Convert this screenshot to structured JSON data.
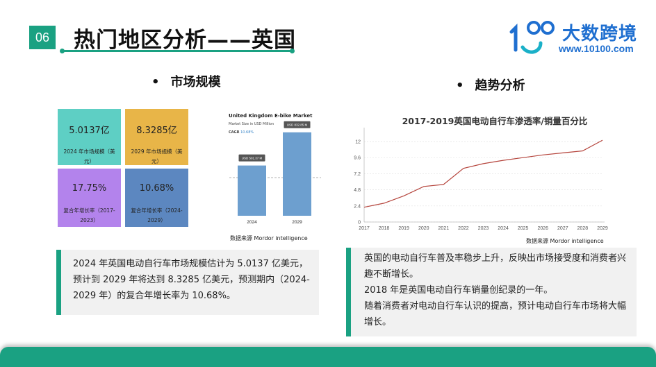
{
  "header": {
    "badge": "06",
    "title": "热门地区分析——英国",
    "logo_text": "大数跨境",
    "logo_url": "www.10100.com"
  },
  "left_section": {
    "heading": "市场规模",
    "bullet": "•",
    "cards": [
      {
        "value": "5.0137亿",
        "label": "2024 年市场规模（美元）",
        "color": "#5ecfc4"
      },
      {
        "value": "8.3285亿",
        "label": "2029 年市场规模（美元）",
        "color": "#e8b548"
      },
      {
        "value": "17.75%",
        "label": "复合年增长率（2017-2023）",
        "color": "#b383ec"
      },
      {
        "value": "10.68%",
        "label": "复合年增长率（2024-2029）",
        "color": "#5c87c0"
      }
    ],
    "summary": "2024 年英国电动自行车市场规模估计为 5.0137 亿美元，预计到 2029 年将达到 8.3285 亿美元，预测期内（2024-2029 年）的复合年增长率为 10.68%。"
  },
  "right_section": {
    "heading": "趋势分析",
    "bullet": "•",
    "paragraphs": [
      "英国的电动自行车普及率稳步上升，反映出市场接受度和消费者兴趣不断增长。",
      "2018 年是英国电动自行车销量创纪录的一年。",
      "随着消费者对电动自行车认识的提高，预计电动自行车市场将大幅增长。"
    ]
  },
  "chart_data": [
    {
      "type": "bar",
      "title": "United Kingdom E-bike Market",
      "subtitle": "Market Size in USD Million",
      "cagr_label": "CAGR",
      "cagr_value": "10.68%",
      "categories": [
        "2024",
        "2029"
      ],
      "values": [
        501.37,
        832.85
      ],
      "data_labels": [
        "USD 501.37 M",
        "USD 832.85 M"
      ],
      "bar_color": "#6d9fcf",
      "source": "数据来源 Mordor intelligence"
    },
    {
      "type": "line",
      "title": "2017-2019英国电动自行车渗透率/销量百分比",
      "x": [
        "2017",
        "2018",
        "2019",
        "2020",
        "2021",
        "2022",
        "2023",
        "2024",
        "2025",
        "2026",
        "2027",
        "2028",
        "2029"
      ],
      "series": [
        {
          "values": [
            2.2,
            2.8,
            3.9,
            5.3,
            5.6,
            8.0,
            8.7,
            9.2,
            9.6,
            10.0,
            10.3,
            10.6,
            12.2
          ]
        }
      ],
      "yticks": [
        "0",
        "2.4",
        "4.8",
        "7.2",
        "9.6",
        "12"
      ],
      "ylim": [
        0,
        12
      ],
      "line_color": "#b5443c",
      "source": "数据来源 Mordor intelligence"
    }
  ]
}
